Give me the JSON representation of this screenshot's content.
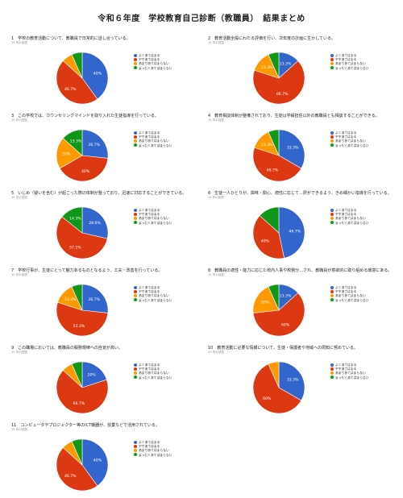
{
  "page": {
    "title": "令和６年度　学校教育自己診断（教職員）　結果まとめ"
  },
  "colors": {
    "blue": "#3366cc",
    "red": "#dc3912",
    "orange": "#ff9900",
    "green": "#109618"
  },
  "legend": [
    "よくあてはまる",
    "ややあてはまる",
    "あまりあてはまらない",
    "まったくあてはまらない"
  ],
  "chart_data": [
    {
      "type": "pie",
      "title": "1　学校の教育活動について、教職員で日常的に話し合っている。",
      "responses": "15 件の回答",
      "values": [
        40,
        46.7,
        6.7,
        6.6
      ],
      "labels": [
        "40%",
        "46.7%",
        "",
        ""
      ]
    },
    {
      "type": "pie",
      "title": "2　教育活動全般にわたる評価を行い、次年度の計画に生かしている。",
      "responses": "15 件の回答",
      "values": [
        13.3,
        66.7,
        13.3,
        6.7
      ],
      "labels": [
        "13.3%",
        "66.7%",
        "13.3%",
        ""
      ]
    },
    {
      "type": "pie",
      "title": "3　この学校では、カウンセリングマインドを取り入れた生徒指導を行っている。",
      "responses": "15 件の回答",
      "values": [
        26.7,
        40,
        20,
        13.3
      ],
      "labels": [
        "26.7%",
        "40%",
        "20%",
        "13.3%"
      ]
    },
    {
      "type": "pie",
      "title": "4　教育相談体制が整備されており、生徒は学級担任以外の教職員とも相談することができる。",
      "responses": "15 件の回答",
      "values": [
        33.3,
        46.7,
        13.3,
        6.7
      ],
      "labels": [
        "33.3%",
        "46.7%",
        "13.3%",
        ""
      ]
    },
    {
      "type": "pie",
      "title": "5　いじめ（疑いを含む）が起こった際の体制が整っており、迅速に対応することができている。",
      "responses": "14 件の回答",
      "values": [
        28.6,
        57.1,
        0,
        14.3
      ],
      "labels": [
        "28.6%",
        "57.1%",
        "",
        "14.3%"
      ]
    },
    {
      "type": "pie",
      "title": "6　生徒一人ひとりが、興味・関心、適性に応じて…択ができるよう、きめ細かい指導を行っている。",
      "responses": "15 件の回答",
      "values": [
        46.7,
        40,
        0,
        13.3
      ],
      "labels": [
        "46.7%",
        "40%",
        "",
        ""
      ]
    },
    {
      "type": "pie",
      "title": "7　学校行事が、生徒にとって魅力あるものとなるよう、工夫・改善を行っている。",
      "responses": "15 件の回答",
      "values": [
        26.7,
        53.3,
        13.3,
        6.7
      ],
      "labels": [
        "26.7%",
        "53.3%",
        "13.3%",
        ""
      ]
    },
    {
      "type": "pie",
      "title": "8　教職員の適性・能力に応じた校内人事や校務分…され、教職員が意欲的に取り組める環境にある。",
      "responses": "15 件の回答",
      "values": [
        13.3,
        60,
        20,
        6.7
      ],
      "labels": [
        "13.3%",
        "60%",
        "20%",
        ""
      ]
    },
    {
      "type": "pie",
      "title": "9　この職場においては、教職員の服務規律への自覚が高い。",
      "responses": "15 件の回答",
      "values": [
        20,
        66.7,
        6.7,
        6.6
      ],
      "labels": [
        "20%",
        "66.7%",
        "",
        ""
      ]
    },
    {
      "type": "pie",
      "title": "10　教育活動に必要な情報について、生徒・保護者や地域への周知に努めている。",
      "responses": "15 件の回答",
      "values": [
        33.3,
        60,
        6.7,
        0
      ],
      "labels": [
        "33.3%",
        "60%",
        "",
        ""
      ]
    },
    {
      "type": "pie",
      "title": "11　コンピュータやプロジェクター等のICT機器が、授業などで活用されている。",
      "responses": "15 件の回答",
      "values": [
        40,
        46.7,
        6.7,
        6.6
      ],
      "labels": [
        "40%",
        "46.7%",
        "",
        ""
      ]
    }
  ]
}
